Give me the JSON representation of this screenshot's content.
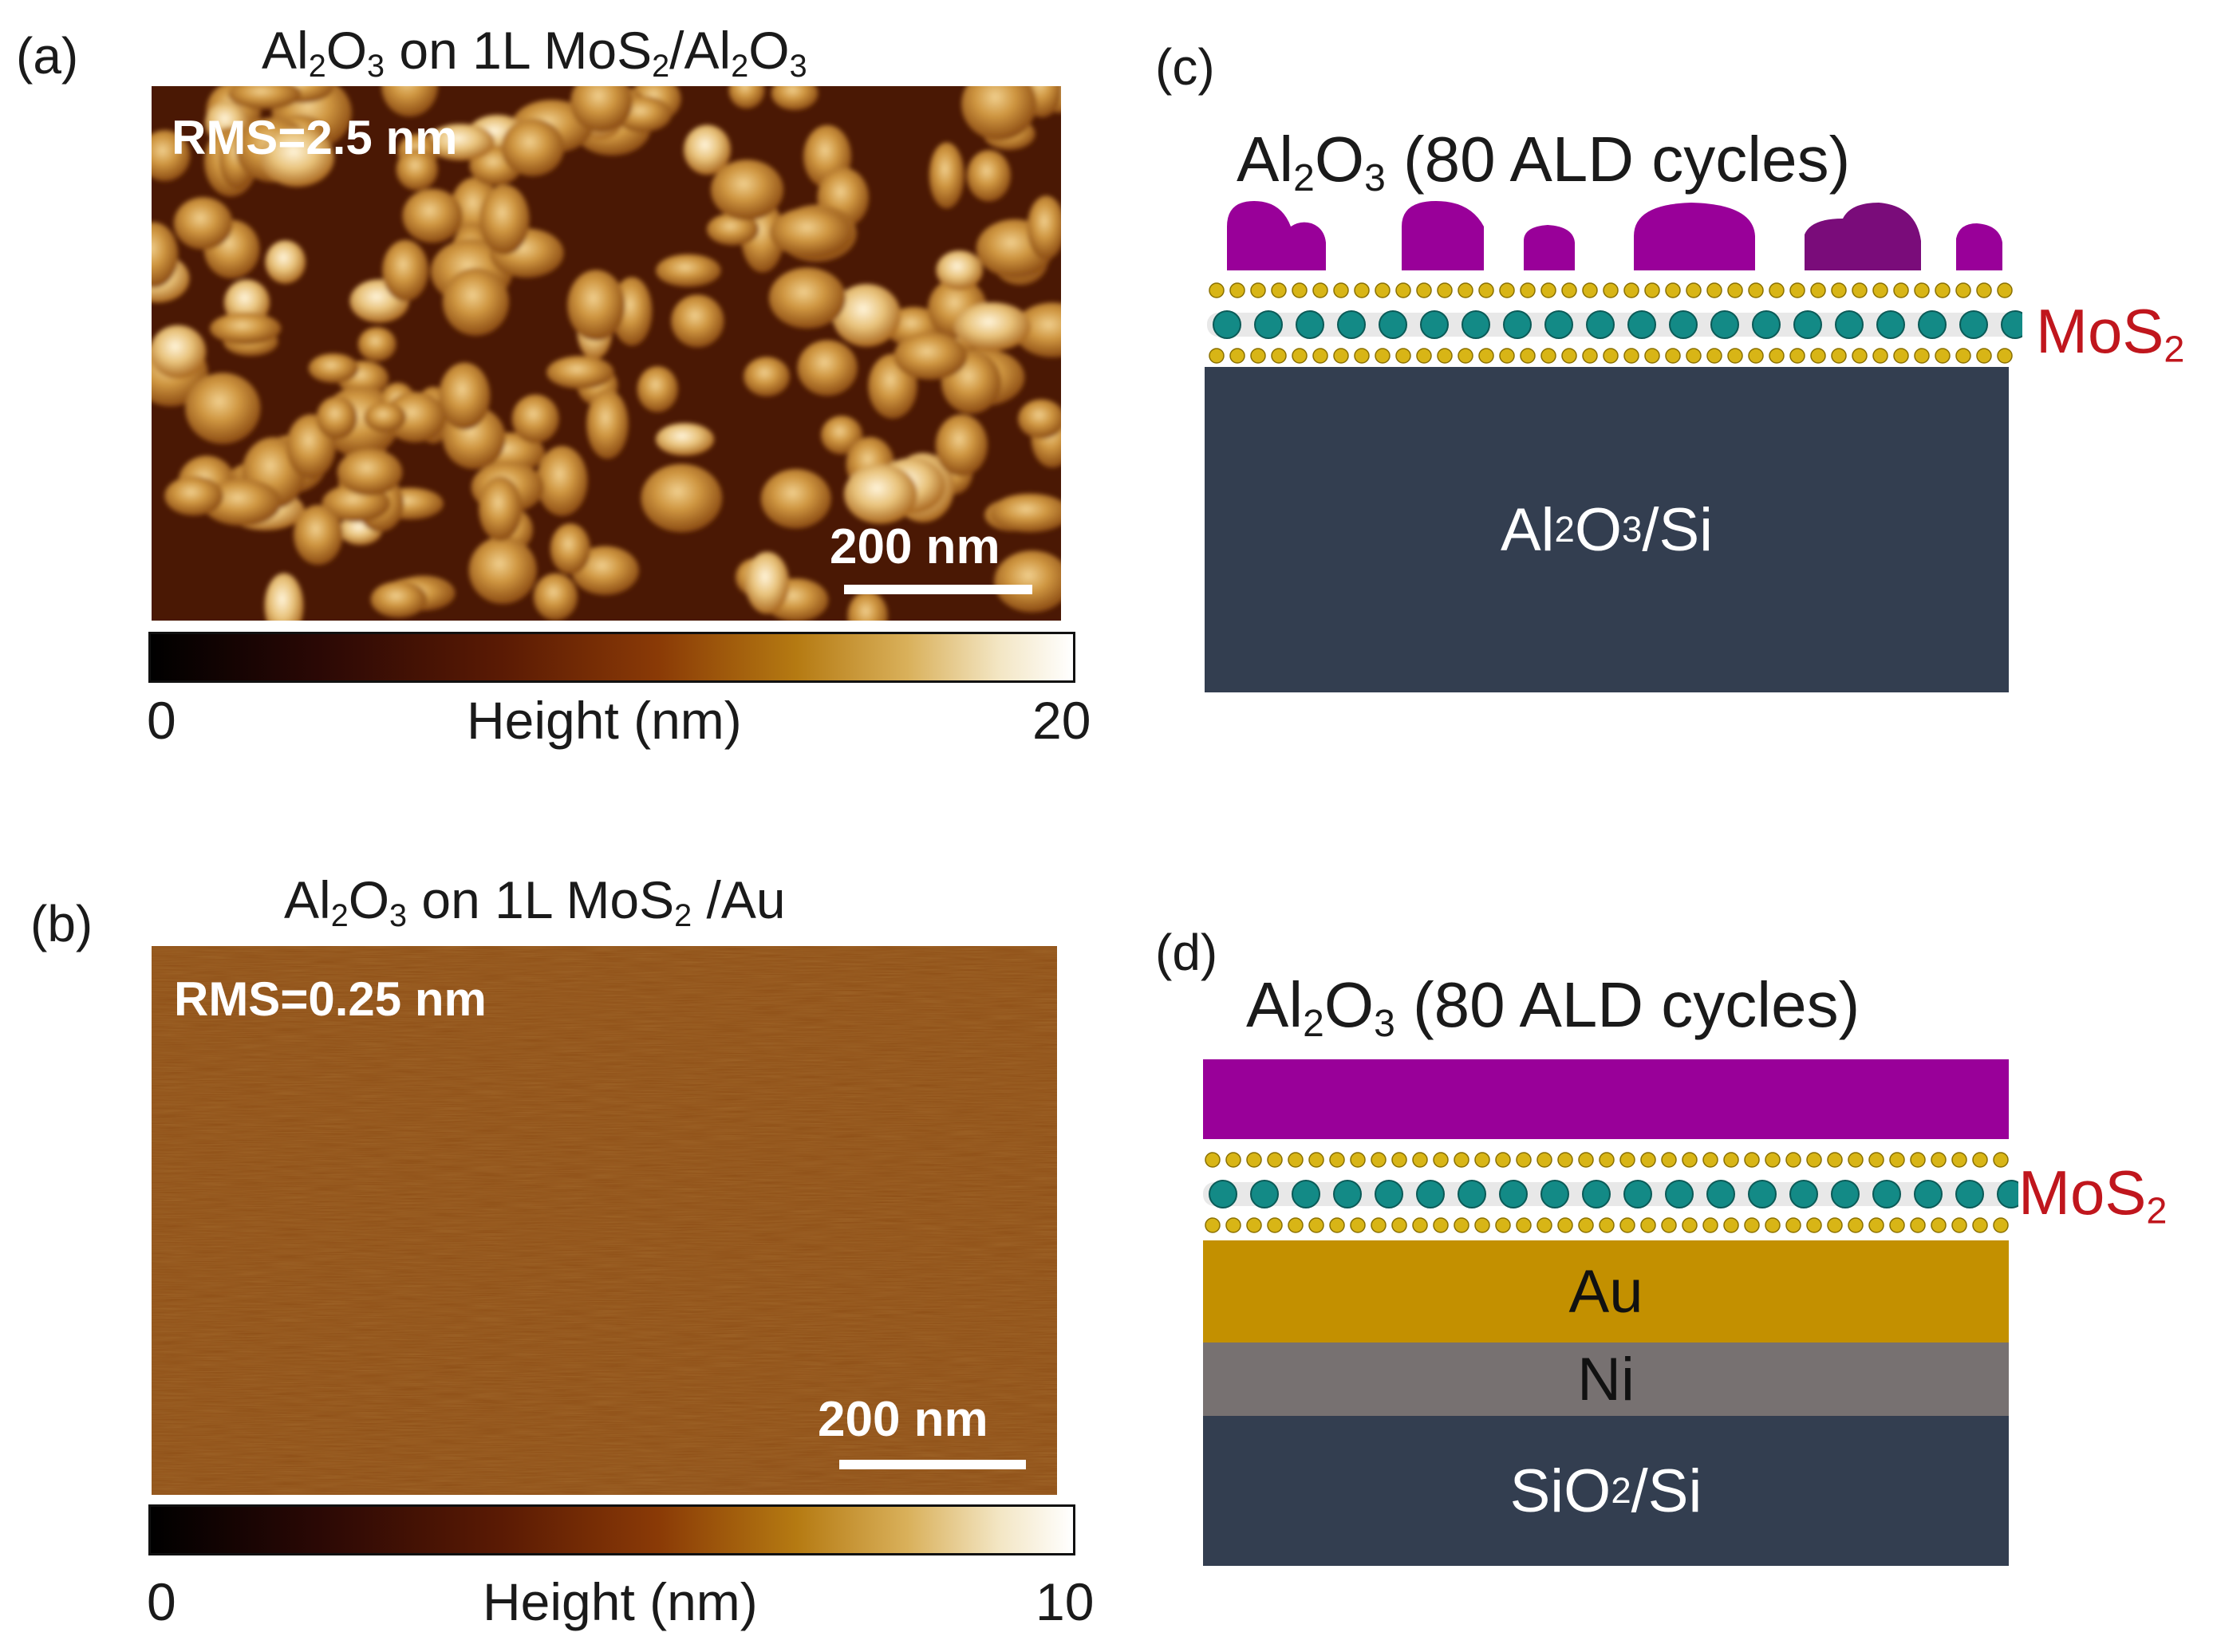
{
  "panel_a": {
    "label": "(a)",
    "title_parts": [
      "Al",
      "2",
      "O",
      "3",
      " on 1L MoS",
      "2",
      "/Al",
      "2",
      "O",
      "3"
    ],
    "rms": "RMS=2.5 nm",
    "scale_bar": "200 nm",
    "colorbar": {
      "min": "0",
      "max": "20",
      "axis_label": "Height (nm)"
    }
  },
  "panel_b": {
    "label": "(b)",
    "title_parts": [
      "Al",
      "2",
      "O",
      "3",
      " on 1L MoS",
      "2",
      " /Au"
    ],
    "rms": "RMS=0.25 nm",
    "scale_bar": "200 nm",
    "colorbar": {
      "min": "0",
      "max": "10",
      "axis_label": "Height (nm)"
    }
  },
  "panel_c": {
    "label": "(c)",
    "title_parts": [
      "Al",
      "2",
      "O",
      "3",
      " (80 ALD cycles)"
    ],
    "mos2_parts": [
      "MoS",
      "2"
    ],
    "substrate_parts": [
      "Al",
      "2",
      "O",
      "3",
      "/Si"
    ]
  },
  "panel_d": {
    "label": "(d)",
    "title_parts": [
      "Al",
      "2",
      "O",
      "3",
      " (80 ALD cycles)"
    ],
    "mos2_parts": [
      "MoS",
      "2"
    ],
    "layers": {
      "au": "Au",
      "ni": "Ni",
      "substrate_parts": [
        "SiO",
        "2",
        "/Si"
      ]
    }
  },
  "colors": {
    "al2o3_film": "#990099",
    "al2o3_dark": "#7a0c7a",
    "mo_atom": "#138a86",
    "s_atom": "#d8b516",
    "substrate": "#333e50",
    "au": "#c39000",
    "ni": "#777171",
    "mos2_label": "#c0161d"
  }
}
